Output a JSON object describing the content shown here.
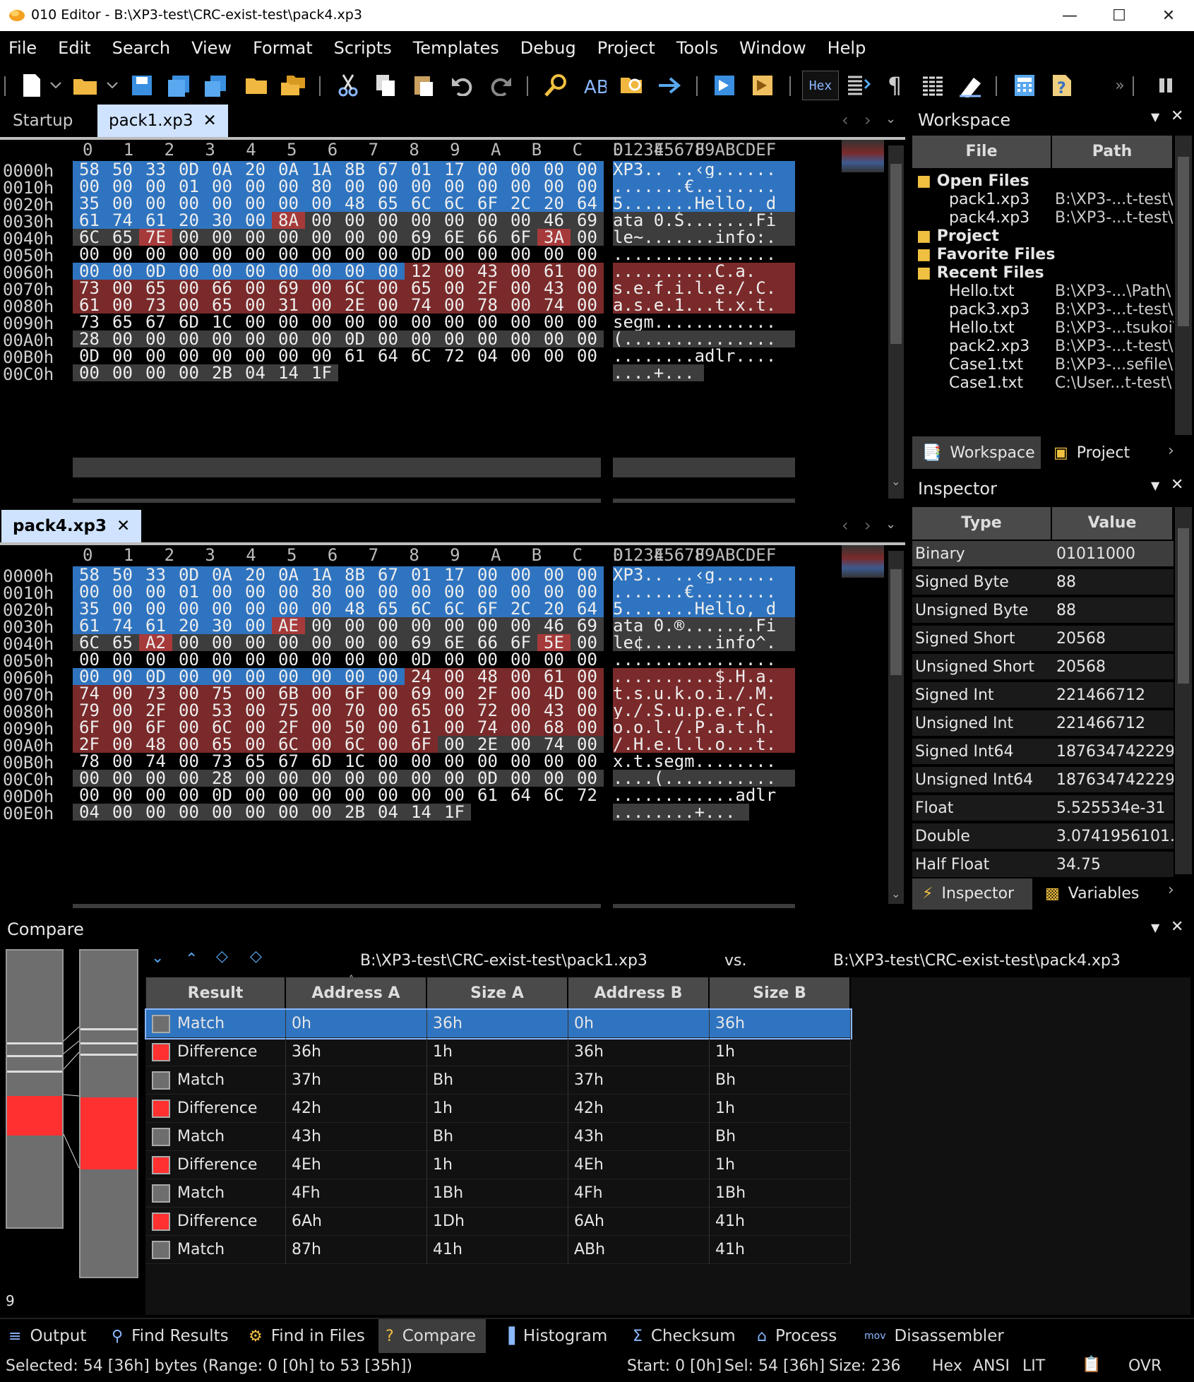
{
  "window": {
    "title": "010 Editor - B:\\XP3-test\\CRC-exist-test\\pack4.xp3"
  },
  "menu": [
    "File",
    "Edit",
    "Search",
    "View",
    "Format",
    "Scripts",
    "Templates",
    "Debug",
    "Project",
    "Tools",
    "Window",
    "Help"
  ],
  "toolbar": {
    "hex_label": "Hex"
  },
  "editor1": {
    "tabs": {
      "startup": "Startup",
      "file": "pack1.xp3"
    },
    "colhdr": "0   1   2   3   4   5   6   7   8   9   A   B   C   D   E   F",
    "aschdr": "0123456789ABCDEF",
    "rows": [
      {
        "a": "0000h",
        "h": [
          "58",
          "50",
          "33",
          "0D",
          "0A",
          "20",
          "0A",
          "1A",
          "8B",
          "67",
          "01",
          "17",
          "00",
          "00",
          "00",
          "00"
        ],
        "s": "XP3.. ..‹g......"
      },
      {
        "a": "0010h",
        "h": [
          "00",
          "00",
          "00",
          "01",
          "00",
          "00",
          "00",
          "80",
          "00",
          "00",
          "00",
          "00",
          "00",
          "00",
          "00",
          "00"
        ],
        "s": ".......€........"
      },
      {
        "a": "0020h",
        "h": [
          "35",
          "00",
          "00",
          "00",
          "00",
          "00",
          "00",
          "00",
          "48",
          "65",
          "6C",
          "6C",
          "6F",
          "2C",
          "20",
          "64"
        ],
        "s": "5.......Hello, d"
      },
      {
        "a": "0030h",
        "h": [
          "61",
          "74",
          "61",
          "20",
          "30",
          "00",
          "8A",
          "00",
          "00",
          "00",
          "00",
          "00",
          "00",
          "00",
          "46",
          "69"
        ],
        "s": "ata 0.Š.......Fi"
      },
      {
        "a": "0040h",
        "h": [
          "6C",
          "65",
          "7E",
          "00",
          "00",
          "00",
          "00",
          "00",
          "00",
          "00",
          "69",
          "6E",
          "66",
          "6F",
          "3A",
          "00"
        ],
        "s": "le~.......info:."
      },
      {
        "a": "0050h",
        "h": [
          "00",
          "00",
          "00",
          "00",
          "00",
          "00",
          "00",
          "00",
          "00",
          "00",
          "0D",
          "00",
          "00",
          "00",
          "00",
          "00"
        ],
        "s": "................"
      },
      {
        "a": "0060h",
        "h": [
          "00",
          "00",
          "0D",
          "00",
          "00",
          "00",
          "00",
          "00",
          "00",
          "00",
          "12",
          "00",
          "43",
          "00",
          "61",
          "00"
        ],
        "s": "..........C.a."
      },
      {
        "a": "0070h",
        "h": [
          "73",
          "00",
          "65",
          "00",
          "66",
          "00",
          "69",
          "00",
          "6C",
          "00",
          "65",
          "00",
          "2F",
          "00",
          "43",
          "00"
        ],
        "s": "s.e.f.i.l.e./.C."
      },
      {
        "a": "0080h",
        "h": [
          "61",
          "00",
          "73",
          "00",
          "65",
          "00",
          "31",
          "00",
          "2E",
          "00",
          "74",
          "00",
          "78",
          "00",
          "74",
          "00"
        ],
        "s": "a.s.e.1...t.x.t."
      },
      {
        "a": "0090h",
        "h": [
          "73",
          "65",
          "67",
          "6D",
          "1C",
          "00",
          "00",
          "00",
          "00",
          "00",
          "00",
          "00",
          "00",
          "00",
          "00",
          "00"
        ],
        "s": "segm............"
      },
      {
        "a": "00A0h",
        "h": [
          "28",
          "00",
          "00",
          "00",
          "00",
          "00",
          "00",
          "00",
          "0D",
          "00",
          "00",
          "00",
          "00",
          "00",
          "00",
          "00"
        ],
        "s": "(..............."
      },
      {
        "a": "00B0h",
        "h": [
          "0D",
          "00",
          "00",
          "00",
          "00",
          "00",
          "00",
          "00",
          "61",
          "64",
          "6C",
          "72",
          "04",
          "00",
          "00",
          "00"
        ],
        "s": "........adlr...."
      },
      {
        "a": "00C0h",
        "h": [
          "00",
          "00",
          "00",
          "00",
          "2B",
          "04",
          "14",
          "1F"
        ],
        "s": "....+..."
      }
    ]
  },
  "editor2": {
    "tabs": {
      "file": "pack4.xp3"
    },
    "rows": [
      {
        "a": "0000h",
        "h": [
          "58",
          "50",
          "33",
          "0D",
          "0A",
          "20",
          "0A",
          "1A",
          "8B",
          "67",
          "01",
          "17",
          "00",
          "00",
          "00",
          "00"
        ],
        "s": "XP3.. ..‹g......"
      },
      {
        "a": "0010h",
        "h": [
          "00",
          "00",
          "00",
          "01",
          "00",
          "00",
          "00",
          "80",
          "00",
          "00",
          "00",
          "00",
          "00",
          "00",
          "00",
          "00"
        ],
        "s": ".......€........"
      },
      {
        "a": "0020h",
        "h": [
          "35",
          "00",
          "00",
          "00",
          "00",
          "00",
          "00",
          "00",
          "48",
          "65",
          "6C",
          "6C",
          "6F",
          "2C",
          "20",
          "64"
        ],
        "s": "5.......Hello, d"
      },
      {
        "a": "0030h",
        "h": [
          "61",
          "74",
          "61",
          "20",
          "30",
          "00",
          "AE",
          "00",
          "00",
          "00",
          "00",
          "00",
          "00",
          "00",
          "46",
          "69"
        ],
        "s": "ata 0.®.......Fi"
      },
      {
        "a": "0040h",
        "h": [
          "6C",
          "65",
          "A2",
          "00",
          "00",
          "00",
          "00",
          "00",
          "00",
          "00",
          "69",
          "6E",
          "66",
          "6F",
          "5E",
          "00"
        ],
        "s": "le¢.......info^."
      },
      {
        "a": "0050h",
        "h": [
          "00",
          "00",
          "00",
          "00",
          "00",
          "00",
          "00",
          "00",
          "00",
          "00",
          "0D",
          "00",
          "00",
          "00",
          "00",
          "00"
        ],
        "s": "................"
      },
      {
        "a": "0060h",
        "h": [
          "00",
          "00",
          "0D",
          "00",
          "00",
          "00",
          "00",
          "00",
          "00",
          "00",
          "24",
          "00",
          "48",
          "00",
          "61",
          "00"
        ],
        "s": "..........$.H.a."
      },
      {
        "a": "0070h",
        "h": [
          "74",
          "00",
          "73",
          "00",
          "75",
          "00",
          "6B",
          "00",
          "6F",
          "00",
          "69",
          "00",
          "2F",
          "00",
          "4D",
          "00"
        ],
        "s": "t.s.u.k.o.i./.M."
      },
      {
        "a": "0080h",
        "h": [
          "79",
          "00",
          "2F",
          "00",
          "53",
          "00",
          "75",
          "00",
          "70",
          "00",
          "65",
          "00",
          "72",
          "00",
          "43",
          "00"
        ],
        "s": "y./.S.u.p.e.r.C."
      },
      {
        "a": "0090h",
        "h": [
          "6F",
          "00",
          "6F",
          "00",
          "6C",
          "00",
          "2F",
          "00",
          "50",
          "00",
          "61",
          "00",
          "74",
          "00",
          "68",
          "00"
        ],
        "s": "o.o.l./.P.a.t.h."
      },
      {
        "a": "00A0h",
        "h": [
          "2F",
          "00",
          "48",
          "00",
          "65",
          "00",
          "6C",
          "00",
          "6C",
          "00",
          "6F",
          "00",
          "2E",
          "00",
          "74",
          "00"
        ],
        "s": "/.H.e.l.l.o...t."
      },
      {
        "a": "00B0h",
        "h": [
          "78",
          "00",
          "74",
          "00",
          "73",
          "65",
          "67",
          "6D",
          "1C",
          "00",
          "00",
          "00",
          "00",
          "00",
          "00",
          "00"
        ],
        "s": "x.t.segm........"
      },
      {
        "a": "00C0h",
        "h": [
          "00",
          "00",
          "00",
          "00",
          "28",
          "00",
          "00",
          "00",
          "00",
          "00",
          "00",
          "00",
          "0D",
          "00",
          "00",
          "00"
        ],
        "s": "....(..........."
      },
      {
        "a": "00D0h",
        "h": [
          "00",
          "00",
          "00",
          "00",
          "0D",
          "00",
          "00",
          "00",
          "00",
          "00",
          "00",
          "00",
          "61",
          "64",
          "6C",
          "72"
        ],
        "s": "............adlr"
      },
      {
        "a": "00E0h",
        "h": [
          "04",
          "00",
          "00",
          "00",
          "00",
          "00",
          "00",
          "00",
          "2B",
          "04",
          "14",
          "1F"
        ],
        "s": "........+..."
      }
    ]
  },
  "workspace": {
    "title": "Workspace",
    "col_file": "File",
    "col_path": "Path",
    "groups": {
      "open": "Open Files",
      "project": "Project",
      "favorite": "Favorite Files",
      "recent": "Recent Files"
    },
    "open_files": [
      {
        "name": "pack1.xp3",
        "path": "B:\\XP3-...t-test\\"
      },
      {
        "name": "pack4.xp3",
        "path": "B:\\XP3-...t-test\\"
      }
    ],
    "recent_files": [
      {
        "name": "Hello.txt",
        "path": "B:\\XP3-...\\Path\\"
      },
      {
        "name": "pack3.xp3",
        "path": "B:\\XP3-...t-test\\"
      },
      {
        "name": "Hello.txt",
        "path": "B:\\XP3-...tsukoi\\"
      },
      {
        "name": "pack2.xp3",
        "path": "B:\\XP3-...t-test\\"
      },
      {
        "name": "Case1.txt",
        "path": "B:\\XP3-...sefile\\"
      },
      {
        "name": "Case1.txt",
        "path": "C:\\User...t-test\\"
      }
    ],
    "tab_workspace": "Workspace",
    "tab_project": "Project"
  },
  "inspector": {
    "title": "Inspector",
    "col_type": "Type",
    "col_value": "Value",
    "rows": [
      {
        "t": "Binary",
        "v": "01011000"
      },
      {
        "t": "Signed Byte",
        "v": "88"
      },
      {
        "t": "Unsigned Byte",
        "v": "88"
      },
      {
        "t": "Signed Short",
        "v": "20568"
      },
      {
        "t": "Unsigned Short",
        "v": "20568"
      },
      {
        "t": "Signed Int",
        "v": "221466712"
      },
      {
        "t": "Unsigned Int",
        "v": "221466712"
      },
      {
        "t": "Signed Int64",
        "v": "187634742229..."
      },
      {
        "t": "Unsigned Int64",
        "v": "187634742229..."
      },
      {
        "t": "Float",
        "v": "5.525534e-31"
      },
      {
        "t": "Double",
        "v": "3.0741956101..."
      },
      {
        "t": "Half Float",
        "v": "34.75"
      }
    ],
    "tab_inspector": "Inspector",
    "tab_variables": "Variables"
  },
  "compare": {
    "title": "Compare",
    "file_a": "B:\\XP3-test\\CRC-exist-test\\pack1.xp3",
    "vs": "vs.",
    "file_b": "B:\\XP3-test\\CRC-exist-test\\pack4.xp3",
    "headers": [
      "Result",
      "Address A",
      "Size A",
      "Address B",
      "Size B"
    ],
    "rows": [
      {
        "r": "Match",
        "aa": "0h",
        "sa": "36h",
        "ab": "0h",
        "sb": "36h"
      },
      {
        "r": "Difference",
        "aa": "36h",
        "sa": "1h",
        "ab": "36h",
        "sb": "1h"
      },
      {
        "r": "Match",
        "aa": "37h",
        "sa": "Bh",
        "ab": "37h",
        "sb": "Bh"
      },
      {
        "r": "Difference",
        "aa": "42h",
        "sa": "1h",
        "ab": "42h",
        "sb": "1h"
      },
      {
        "r": "Match",
        "aa": "43h",
        "sa": "Bh",
        "ab": "43h",
        "sb": "Bh"
      },
      {
        "r": "Difference",
        "aa": "4Eh",
        "sa": "1h",
        "ab": "4Eh",
        "sb": "1h"
      },
      {
        "r": "Match",
        "aa": "4Fh",
        "sa": "1Bh",
        "ab": "4Fh",
        "sb": "1Bh"
      },
      {
        "r": "Difference",
        "aa": "6Ah",
        "sa": "1Dh",
        "ab": "6Ah",
        "sb": "41h"
      },
      {
        "r": "Match",
        "aa": "87h",
        "sa": "41h",
        "ab": "ABh",
        "sb": "41h"
      }
    ],
    "count": "9"
  },
  "bottom_tabs": [
    "Output",
    "Find Results",
    "Find in Files",
    "Compare",
    "Histogram",
    "Checksum",
    "Process",
    "Disassembler"
  ],
  "status": {
    "selected": "Selected: 54 [36h] bytes (Range: 0 [0h] to 53 [35h])",
    "start": "Start: 0 [0h]",
    "sel": "Sel: 54 [36h]",
    "size": "Size: 236",
    "hex": "Hex",
    "ansi": "ANSI",
    "lit": "LIT",
    "ovr": "OVR"
  },
  "colors": {
    "selection": "#2f74c0",
    "diff": "#7a2a2a",
    "diff_strong": "#a63a3a",
    "gray": "#3d3d3d",
    "red_marker": "#ff3030"
  }
}
